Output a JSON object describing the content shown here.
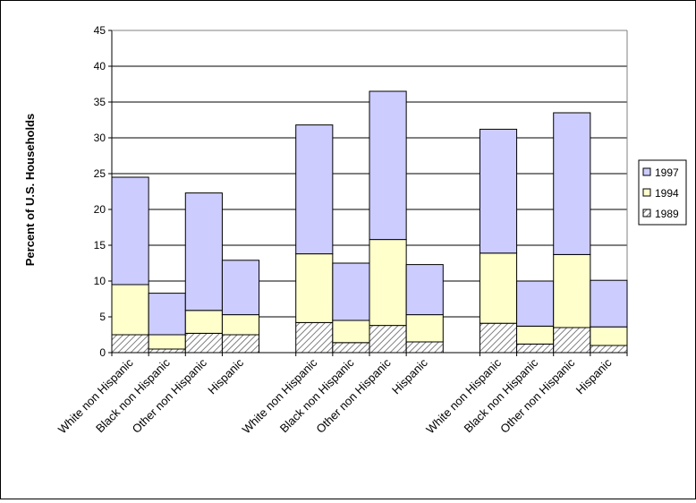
{
  "chart_data": {
    "type": "bar",
    "stacked": true,
    "title": "",
    "xlabel": "",
    "ylabel": "Percent of U.S. Households",
    "ylim": [
      0,
      45
    ],
    "yticks": [
      0,
      5,
      10,
      15,
      20,
      25,
      30,
      35,
      40,
      45
    ],
    "grid": true,
    "legend_position": "right",
    "groups": [
      {
        "categories": [
          "White non Hispanic",
          "Black non Hispanic",
          "Other non Hispanic",
          "Hispanic"
        ]
      },
      {
        "categories": [
          "White non Hispanic",
          "Black non Hispanic",
          "Other non Hispanic",
          "Hispanic"
        ]
      },
      {
        "categories": [
          "White non Hispanic",
          "Black non Hispanic",
          "Other non Hispanic",
          "Hispanic"
        ]
      }
    ],
    "series": [
      {
        "name": "1989",
        "color": "#c0c0c0",
        "pattern": "diagonal-hatch",
        "values": [
          [
            2.5,
            0.5,
            2.7,
            2.5
          ],
          [
            4.2,
            1.4,
            3.8,
            1.5
          ],
          [
            4.1,
            1.2,
            3.5,
            1.0
          ]
        ]
      },
      {
        "name": "1994",
        "color": "#ffffcc",
        "values": [
          [
            7.0,
            2.0,
            3.2,
            2.8
          ],
          [
            9.6,
            3.1,
            12.0,
            3.8
          ],
          [
            9.8,
            2.5,
            10.2,
            2.6
          ]
        ]
      },
      {
        "name": "1997",
        "color": "#ccccff",
        "values": [
          [
            15.0,
            5.8,
            16.4,
            7.6
          ],
          [
            18.0,
            8.0,
            20.7,
            7.0
          ],
          [
            17.3,
            6.3,
            19.8,
            6.5
          ]
        ]
      }
    ],
    "legend_order": [
      "1997",
      "1994",
      "1989"
    ]
  }
}
